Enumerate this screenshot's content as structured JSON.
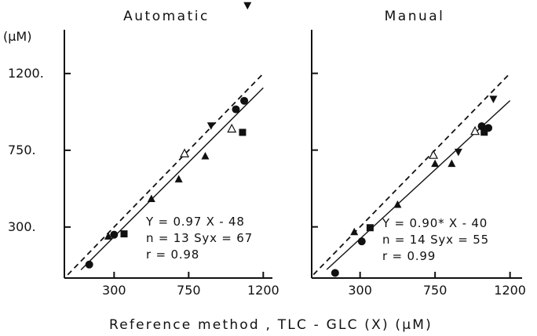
{
  "figure": {
    "xlabel": "Reference method , TLC - GLC (X) (μM)",
    "yunit": "(μM)"
  },
  "chart_data": [
    {
      "type": "scatter",
      "title": "Automatic",
      "xlabel": "Reference method , TLC - GLC (X) (μM)",
      "ylabel": "(μM)",
      "xlim": [
        0,
        1350
      ],
      "ylim": [
        0,
        1600
      ],
      "xticks": [
        300,
        750,
        1200
      ],
      "yticks": [
        300,
        750,
        1200
      ],
      "xtick_labels": [
        "300",
        "750",
        "1200"
      ],
      "ytick_labels": [
        "300.",
        "750.",
        "1200."
      ],
      "grid": false,
      "fit_line": {
        "slope": 0.97,
        "intercept": -48
      },
      "identity_line": true,
      "annotation": [
        "Y = 0.97 X - 48",
        "n = 13 Syx = 67",
        "r = 0.98"
      ],
      "series": [
        {
          "marker": "circle",
          "points": [
            [
              150,
              80
            ],
            [
              300,
              255
            ],
            [
              1035,
              990
            ],
            [
              1085,
              1040
            ]
          ]
        },
        {
          "marker": "square",
          "points": [
            [
              360,
              260
            ],
            [
              1075,
              855
            ]
          ]
        },
        {
          "marker": "triangle",
          "points": [
            [
              265,
              245
            ],
            [
              525,
              465
            ],
            [
              690,
              580
            ],
            [
              850,
              715
            ]
          ]
        },
        {
          "marker": "open-triangle",
          "points": [
            [
              725,
              730
            ],
            [
              1010,
              875
            ]
          ]
        },
        {
          "marker": "inverted-triangle",
          "points": [
            [
              885,
              895
            ],
            [
              1105,
              1600
            ]
          ]
        }
      ]
    },
    {
      "type": "scatter",
      "title": "Manual",
      "xlabel": "Reference method , TLC - GLC (X) (μM)",
      "ylabel": "",
      "xlim": [
        0,
        1350
      ],
      "ylim": [
        0,
        1600
      ],
      "xticks": [
        300,
        750,
        1200
      ],
      "yticks": [
        300,
        750,
        1200
      ],
      "xtick_labels": [
        "300",
        "750",
        "1200"
      ],
      "ytick_labels": [
        "",
        "",
        ""
      ],
      "grid": false,
      "fit_line": {
        "slope": 0.9,
        "intercept": -40
      },
      "identity_line": true,
      "annotation": [
        "Y = 0.90* X - 40",
        "n = 14 Syx = 55",
        "r = 0.99"
      ],
      "series": [
        {
          "marker": "circle",
          "points": [
            [
              150,
              30
            ],
            [
              310,
              215
            ],
            [
              1030,
              890
            ],
            [
              1070,
              880
            ]
          ]
        },
        {
          "marker": "square",
          "points": [
            [
              360,
              295
            ],
            [
              1045,
              855
            ]
          ]
        },
        {
          "marker": "triangle",
          "points": [
            [
              265,
              270
            ],
            [
              525,
              430
            ],
            [
              750,
              670
            ],
            [
              850,
              670
            ]
          ]
        },
        {
          "marker": "open-triangle",
          "points": [
            [
              740,
              720
            ],
            [
              990,
              860
            ]
          ]
        },
        {
          "marker": "inverted-triangle",
          "points": [
            [
              890,
              740
            ],
            [
              1100,
              1050
            ]
          ]
        }
      ]
    }
  ]
}
